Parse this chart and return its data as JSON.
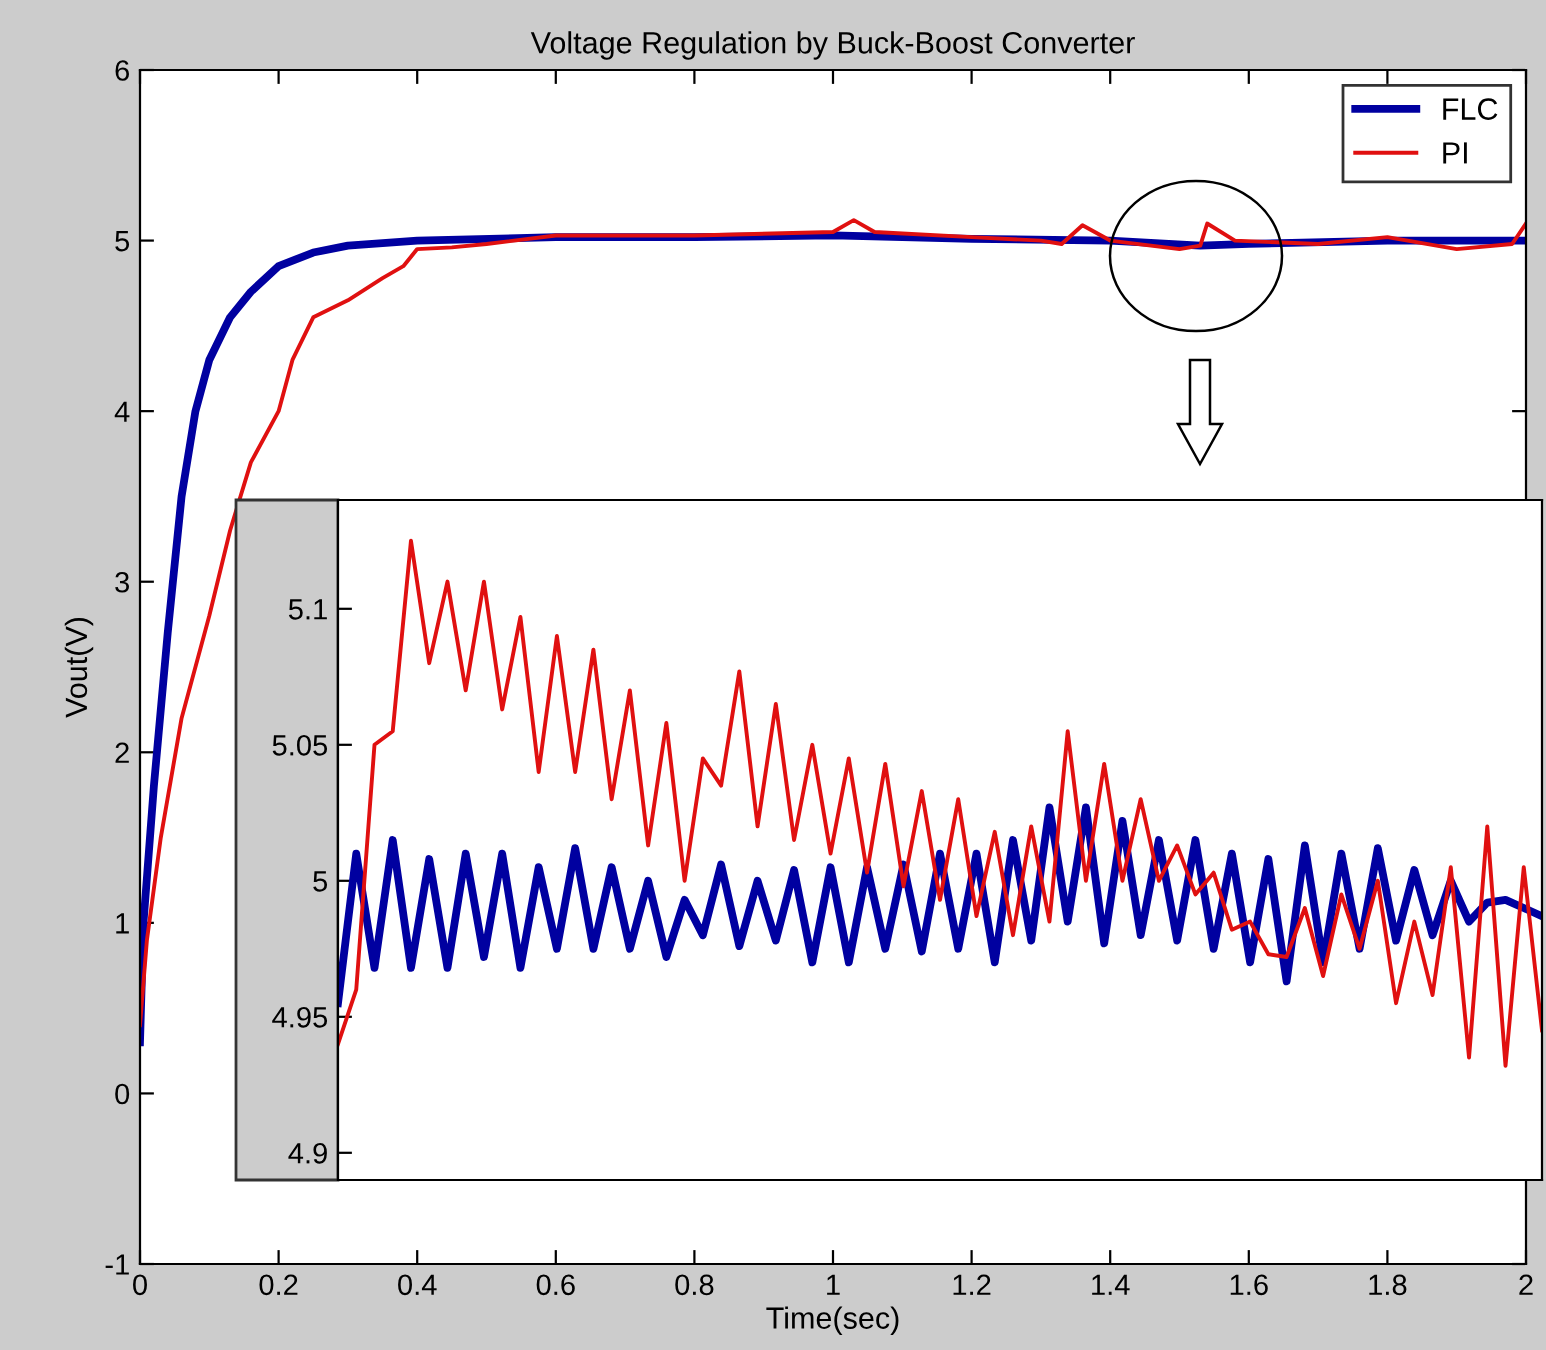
{
  "chart_data": [
    {
      "type": "line",
      "title": "Voltage Regulation by Buck-Boost Converter",
      "xlabel": "Time(sec)",
      "ylabel": "Vout(V)",
      "xlim": [
        0,
        2
      ],
      "ylim": [
        -1,
        6
      ],
      "xticks": [
        0,
        0.2,
        0.4,
        0.6,
        0.8,
        1,
        1.2,
        1.4,
        1.6,
        1.8,
        2
      ],
      "yticks": [
        -1,
        0,
        1,
        2,
        3,
        4,
        5,
        6
      ],
      "legend": "top right",
      "grid": false,
      "series": [
        {
          "name": "FLC",
          "color": "#0000a0",
          "x": [
            0,
            0.005,
            0.02,
            0.04,
            0.06,
            0.08,
            0.1,
            0.13,
            0.16,
            0.2,
            0.25,
            0.3,
            0.4,
            0.6,
            0.8,
            1.0,
            1.2,
            1.4,
            1.53,
            1.6,
            1.8,
            2.0
          ],
          "values": [
            0.3,
            1.0,
            1.8,
            2.7,
            3.5,
            4.0,
            4.3,
            4.55,
            4.7,
            4.85,
            4.93,
            4.97,
            5.0,
            5.02,
            5.02,
            5.03,
            5.01,
            5.0,
            4.97,
            4.98,
            5.0,
            5.0
          ]
        },
        {
          "name": "PI",
          "color": "#e01010",
          "x": [
            0,
            0.01,
            0.03,
            0.06,
            0.1,
            0.13,
            0.16,
            0.2,
            0.22,
            0.25,
            0.3,
            0.35,
            0.38,
            0.4,
            0.45,
            0.5,
            0.6,
            0.8,
            1.0,
            1.03,
            1.06,
            1.2,
            1.3,
            1.33,
            1.36,
            1.4,
            1.5,
            1.53,
            1.54,
            1.58,
            1.7,
            1.8,
            1.9,
            1.98,
            2.0
          ],
          "values": [
            0.4,
            0.9,
            1.5,
            2.2,
            2.8,
            3.3,
            3.7,
            4.0,
            4.3,
            4.55,
            4.65,
            4.78,
            4.85,
            4.95,
            4.96,
            4.98,
            5.03,
            5.03,
            5.05,
            5.12,
            5.05,
            5.02,
            5.0,
            4.98,
            5.09,
            5.0,
            4.95,
            4.97,
            5.1,
            5.0,
            4.98,
            5.02,
            4.95,
            4.98,
            5.1
          ]
        }
      ]
    },
    {
      "type": "line",
      "categories": [
        null,
        null,
        null,
        null,
        null,
        null,
        null,
        null,
        null,
        null,
        null,
        null,
        null,
        null,
        null,
        null,
        null,
        null,
        null,
        null,
        null,
        null,
        null,
        null,
        null,
        null,
        null,
        null,
        null,
        null,
        null,
        null,
        null,
        null,
        null,
        null,
        null,
        null,
        null,
        null,
        null,
        null,
        null,
        null,
        null,
        null,
        null,
        null,
        null,
        null,
        null,
        null,
        null,
        null,
        null,
        null,
        null,
        null,
        null,
        null,
        null,
        null,
        null,
        null,
        null,
        null,
        null
      ],
      "ylim": [
        4.89,
        5.14
      ],
      "yticks": [
        4.9,
        4.95,
        5,
        5.05,
        5.1
      ],
      "tick_labels": "y",
      "grid": false,
      "series": [
        {
          "color": "#0000a0",
          "values": [
            4.955,
            5.01,
            4.968,
            5.015,
            4.968,
            5.008,
            4.968,
            5.01,
            4.972,
            5.01,
            4.968,
            5.005,
            4.975,
            5.012,
            4.975,
            5.005,
            4.975,
            5.0,
            4.972,
            4.993,
            4.98,
            5.006,
            4.976,
            5.0,
            4.978,
            5.004,
            4.97,
            5.005,
            4.97,
            5.005,
            4.975,
            5.006,
            4.974,
            5.01,
            4.975,
            5.01,
            4.97,
            5.015,
            4.978,
            5.027,
            4.985,
            5.027,
            4.977,
            5.022,
            4.98,
            5.015,
            4.978,
            5.015,
            4.975,
            5.01,
            4.97,
            5.008,
            4.963,
            5.013,
            4.97,
            5.01,
            4.975,
            5.012,
            4.978,
            5.004,
            4.98,
            5.0,
            4.985,
            4.992,
            4.993,
            4.99,
            4.987
          ]
        },
        {
          "color": "#e01010",
          "values": [
            4.94,
            4.96,
            5.05,
            5.055,
            5.125,
            5.08,
            5.11,
            5.07,
            5.11,
            5.063,
            5.097,
            5.04,
            5.09,
            5.04,
            5.085,
            5.03,
            5.07,
            5.013,
            5.058,
            5.0,
            5.045,
            5.035,
            5.077,
            5.02,
            5.065,
            5.015,
            5.05,
            5.01,
            5.045,
            5.003,
            5.043,
            4.998,
            5.033,
            4.993,
            5.03,
            4.987,
            5.018,
            4.98,
            5.02,
            4.985,
            5.055,
            5.0,
            5.043,
            5.0,
            5.03,
            5.0,
            5.013,
            4.995,
            5.003,
            4.982,
            4.985,
            4.973,
            4.972,
            4.99,
            4.965,
            4.995,
            4.975,
            5.0,
            4.955,
            4.985,
            4.958,
            5.005,
            4.935,
            5.02,
            4.932,
            5.005,
            4.945
          ]
        }
      ]
    }
  ]
}
